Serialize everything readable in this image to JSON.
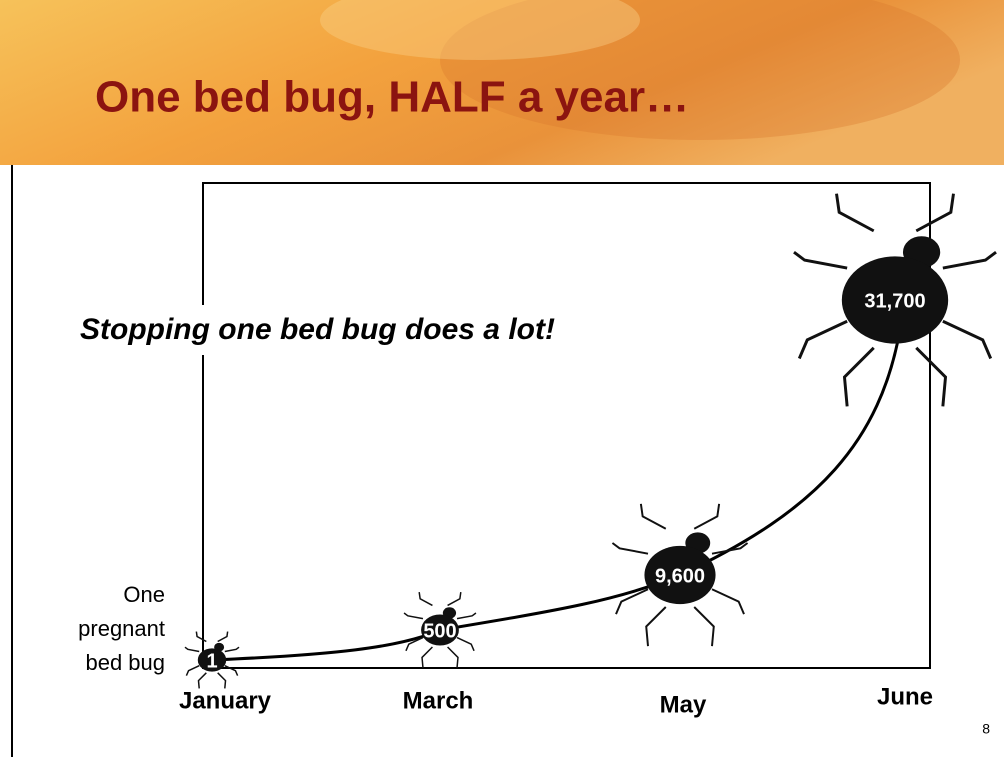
{
  "chart_data": {
    "type": "pictogram",
    "title": "One bed bug, HALF a year…",
    "annotation": "Stopping one bed bug does a lot!",
    "start_label": [
      "One",
      "pregnant",
      "bed bug"
    ],
    "page_number": "8",
    "categories": [
      "January",
      "March",
      "May",
      "June"
    ],
    "values": [
      1,
      500,
      9600,
      31700
    ],
    "value_labels": [
      "1",
      "500",
      "9,600",
      "31,700"
    ],
    "color": "#111111"
  }
}
